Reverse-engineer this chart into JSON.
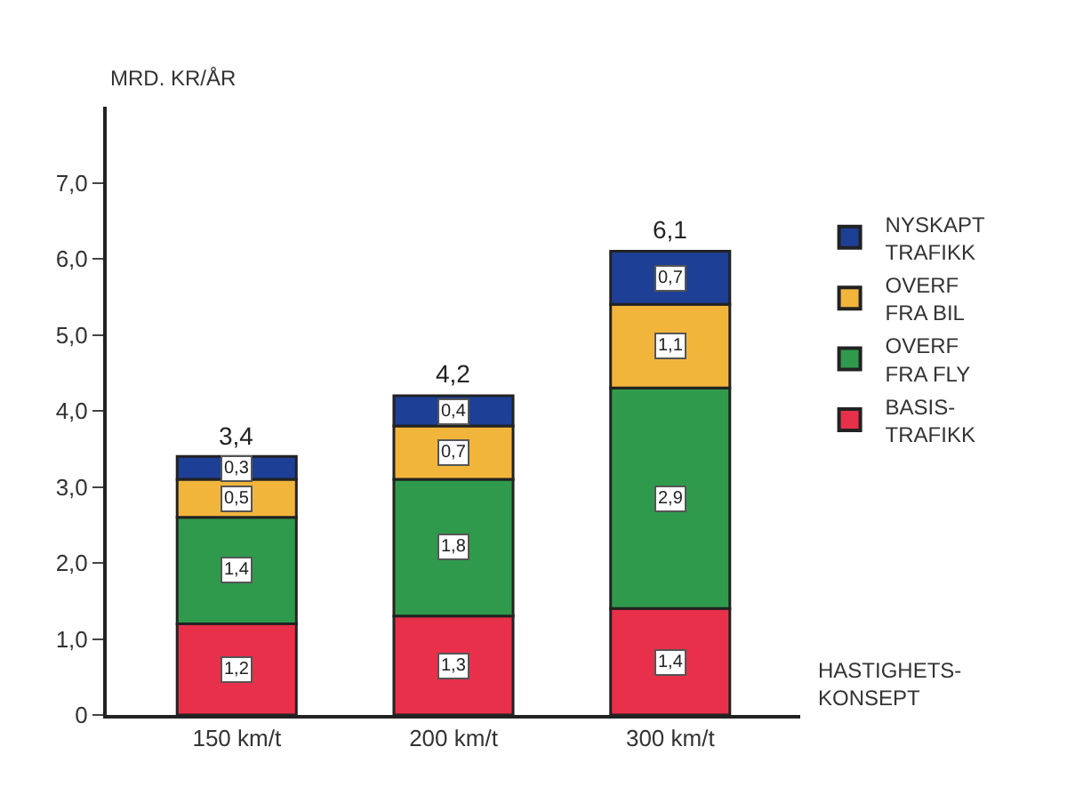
{
  "chart_data": {
    "type": "bar",
    "stacked": true,
    "xlabel": "HASTIGHETS-\nKONSEPT",
    "ylabel": "MRD. KR/ÅR",
    "categories": [
      "150 km/t",
      "200 km/t",
      "300 km/t"
    ],
    "series": [
      {
        "name": "BASIS-\nTRAFIKK",
        "color": "#e8304a",
        "values": [
          1.2,
          1.3,
          1.4
        ],
        "value_labels": [
          "1,2",
          "1,3",
          "1,4"
        ]
      },
      {
        "name": "OVERF\nFRA FLY",
        "color": "#2f9a4c",
        "values": [
          1.4,
          1.8,
          2.9
        ],
        "value_labels": [
          "1,4",
          "1,8",
          "2,9"
        ]
      },
      {
        "name": "OVERF\nFRA BIL",
        "color": "#f2b53c",
        "values": [
          0.5,
          0.7,
          1.1
        ],
        "value_labels": [
          "0,5",
          "0,7",
          "1,1"
        ]
      },
      {
        "name": "NYSKAPT\nTRAFIKK",
        "color": "#1d3f96",
        "values": [
          0.3,
          0.4,
          0.7
        ],
        "value_labels": [
          "0,3",
          "0,4",
          "0,7"
        ]
      }
    ],
    "totals": [
      "3,4",
      "4,2",
      "6,1"
    ],
    "ylim": [
      0,
      8
    ],
    "yticks": [
      0,
      {
        "value": 1,
        "label": "1,0"
      },
      {
        "value": 2,
        "label": "2,0"
      },
      {
        "value": 3,
        "label": "3,0"
      },
      {
        "value": 4,
        "label": "4,0"
      },
      {
        "value": 5,
        "label": "5,0"
      },
      {
        "value": 6,
        "label": "6,0"
      },
      {
        "value": 7,
        "label": "7,0"
      }
    ],
    "legend": "right"
  }
}
